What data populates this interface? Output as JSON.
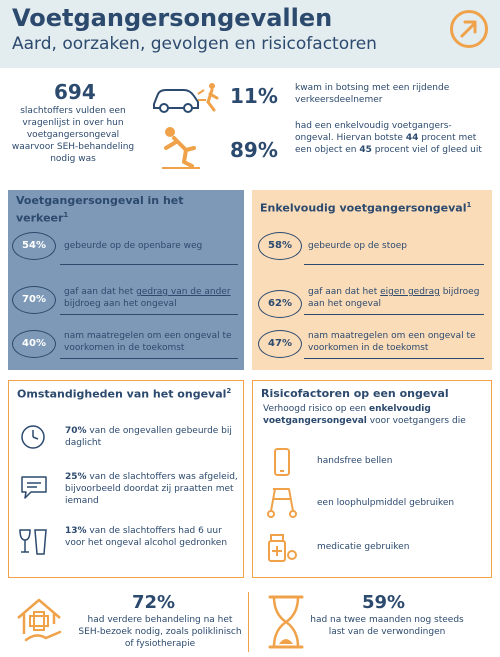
{
  "header": {
    "title": "Voetgangersongevallen",
    "subtitle": "Aard, oorzaken, gevolgen en risicofactoren"
  },
  "intro": {
    "count": "694",
    "text": "slachtoffers vulden een vragenlijst in over hun voetgangersongeval waarvoor SEH-behandeling nodig was"
  },
  "stats": [
    {
      "pct": "11%",
      "text": "kwam in botsing met een rijdende verkeersdeelnemer"
    },
    {
      "pct": "89%",
      "text_a": "had een enkelvoudig voetgangers-ongeval. Hiervan botste ",
      "num_a": "44",
      "text_b": " procent met een object en ",
      "num_b": "45",
      "text_c": " procent viel of gleed uit"
    }
  ],
  "traffic_panel": {
    "title": "Voetgangersongeval in het verkeer",
    "sup": "1",
    "items": [
      {
        "pct": "54%",
        "text": "gebeurde op de openbare weg"
      },
      {
        "pct": "70%",
        "text_a": "gaf aan dat het ",
        "underline": "gedrag van de ander",
        "text_b": " bijdroeg aan het ongeval"
      },
      {
        "pct": "40%",
        "text": "nam maatregelen om een ongeval te voorkomen in de toekomst"
      }
    ]
  },
  "single_panel": {
    "title": "Enkelvoudig voetgangersongeval",
    "sup": "1",
    "items": [
      {
        "pct": "58%",
        "text": "gebeurde op de stoep"
      },
      {
        "pct": "62%",
        "text_a": "gaf aan dat het ",
        "underline": "eigen gedrag",
        "text_b": " bijdroeg aan het ongeval"
      },
      {
        "pct": "47%",
        "text": "nam maatregelen om een ongeval te voorkomen in de toekomst"
      }
    ]
  },
  "circumstances": {
    "title": "Omstandigheden van het ongeval",
    "sup": "2",
    "items": [
      {
        "pct": "70%",
        "text": " van de ongevallen gebeurde bij daglicht",
        "icon": "clock-icon"
      },
      {
        "pct": "25%",
        "text": " van de slachtoffers was afgeleid, bijvoorbeeld doordat zij praatten met iemand",
        "icon": "chat-icon"
      },
      {
        "pct": "13%",
        "text": " van de slachtoffers had 6 uur voor het ongeval alcohol gedronken",
        "icon": "drinks-icon"
      }
    ]
  },
  "risk": {
    "title": "Risicofactoren op een ongeval",
    "sub_a": "Verhoogd risico op een ",
    "sub_bold": "enkelvoudig voetgangersongeval",
    "sub_b": " voor voetgangers die",
    "items": [
      {
        "text": "handsfree bellen",
        "icon": "phone-icon"
      },
      {
        "text": "een loophulpmiddel gebruiken",
        "icon": "walker-icon"
      },
      {
        "text": "medicatie gebruiken",
        "icon": "medication-icon"
      }
    ]
  },
  "bottom": [
    {
      "pct": "72%",
      "text": "had verdere behandeling na het SEH-bezoek nodig, zoals poliklinisch of fysiotherapie",
      "icon": "care-icon"
    },
    {
      "pct": "59%",
      "text": "had na twee maanden nog steeds last van de verwondingen",
      "icon": "hourglass-icon"
    }
  ],
  "colors": {
    "navy": "#2c4a6e",
    "orange": "#f0a24a",
    "blue_panel": "#7e99b7",
    "peach_panel": "#fbdcb9",
    "header_bg": "#e3ecee"
  }
}
